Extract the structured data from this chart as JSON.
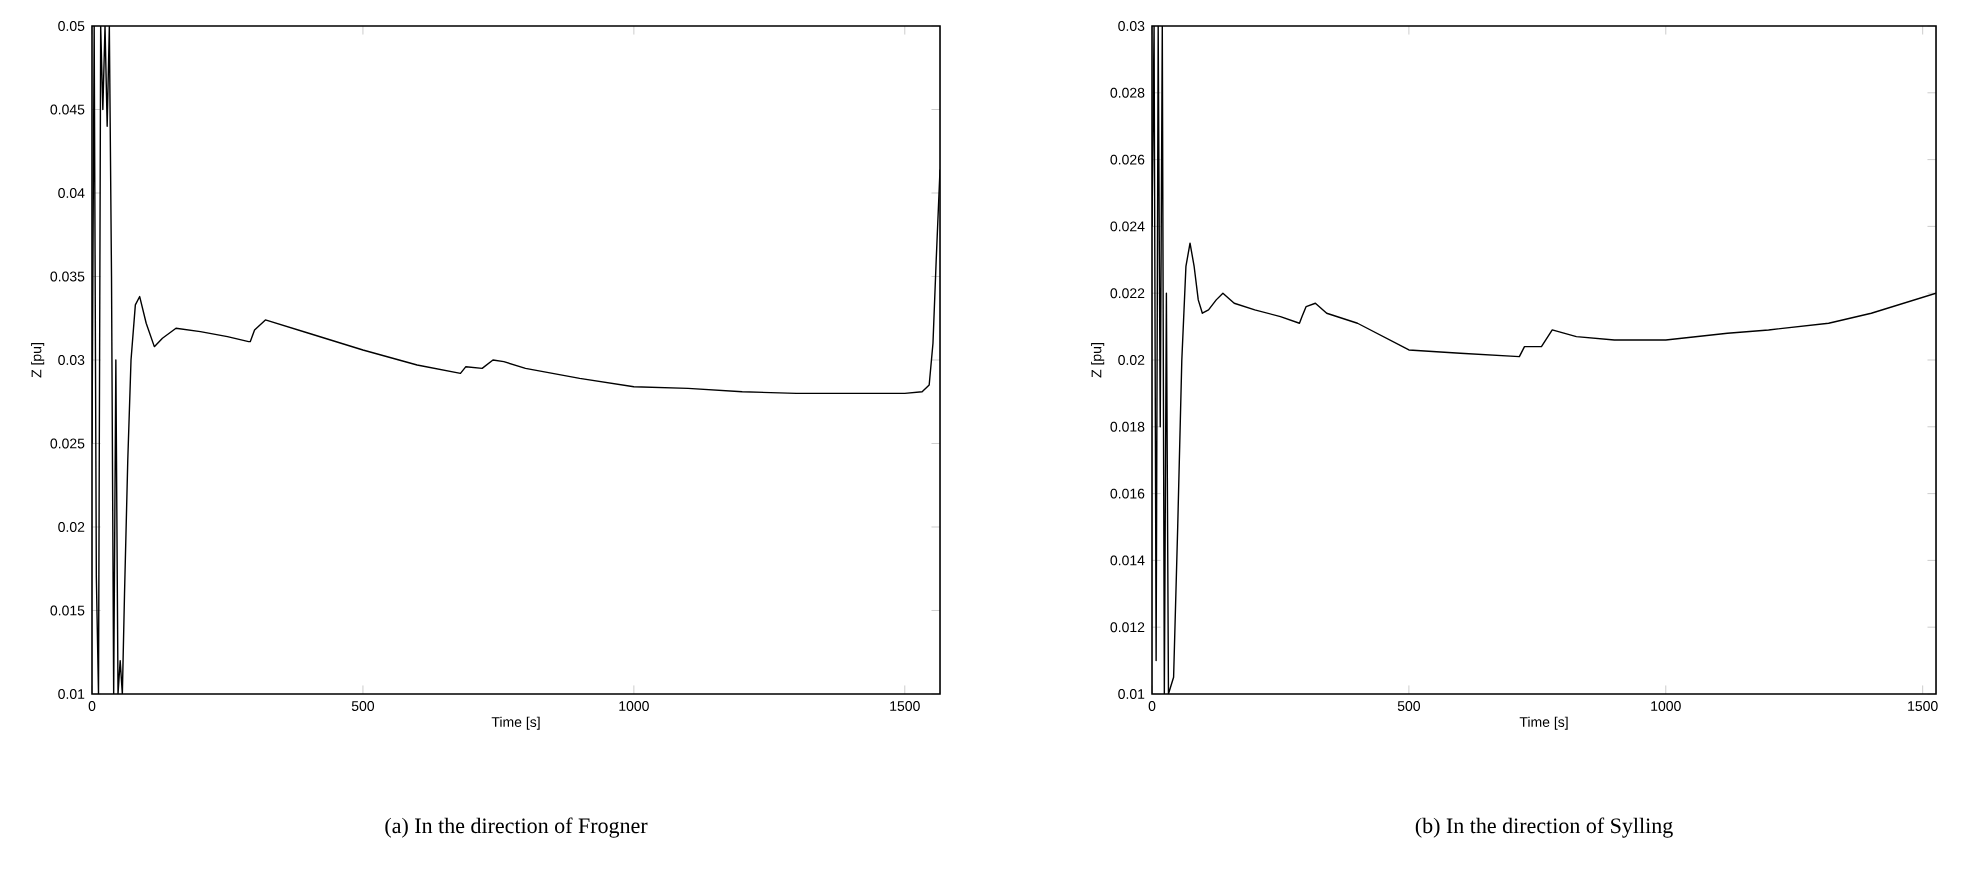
{
  "chart_data": [
    {
      "type": "line",
      "xlabel": "Time [s]",
      "ylabel": "Z [pu]",
      "color": "#000000",
      "annotations": [
        "(a) In the direction of Frogner"
      ],
      "xlim": [
        0,
        1565
      ],
      "ylim": [
        0.01,
        0.05
      ],
      "xticks": [
        0,
        500,
        1000,
        1500
      ],
      "yticks": [
        0.01,
        0.015,
        0.02,
        0.025,
        0.03,
        0.035,
        0.04,
        0.045,
        0.05
      ],
      "x": [
        0,
        4,
        8,
        12,
        16,
        20,
        24,
        28,
        32,
        36,
        40,
        44,
        48,
        52,
        56,
        60,
        66,
        72,
        80,
        88,
        100,
        115,
        130,
        155,
        200,
        250,
        289,
        292,
        300,
        320,
        350,
        400,
        500,
        600,
        680,
        690,
        720,
        740,
        760,
        800,
        900,
        1000,
        1100,
        1200,
        1300,
        1400,
        1500,
        1532,
        1545,
        1552,
        1558,
        1565
      ],
      "values": [
        0.025,
        0.05,
        0.017,
        0.01,
        0.05,
        0.045,
        0.05,
        0.044,
        0.05,
        0.035,
        0.01,
        0.03,
        0.01,
        0.012,
        0.01,
        0.016,
        0.024,
        0.03,
        0.0333,
        0.0338,
        0.0322,
        0.0308,
        0.0313,
        0.0319,
        0.0317,
        0.0314,
        0.0311,
        0.0311,
        0.0318,
        0.0324,
        0.0321,
        0.0316,
        0.0306,
        0.0297,
        0.0292,
        0.0296,
        0.0295,
        0.03,
        0.0299,
        0.0295,
        0.0289,
        0.0284,
        0.0283,
        0.0281,
        0.028,
        0.028,
        0.028,
        0.0281,
        0.0285,
        0.031,
        0.036,
        0.0414
      ]
    },
    {
      "type": "line",
      "xlabel": "Time [s]",
      "ylabel": "Z [pu]",
      "color": "#000000",
      "annotations": [
        "(b) In the direction of Sylling"
      ],
      "xlim": [
        0,
        1526
      ],
      "ylim": [
        0.01,
        0.03
      ],
      "xticks": [
        0,
        500,
        1000,
        1500
      ],
      "yticks": [
        0.01,
        0.012,
        0.014,
        0.016,
        0.018,
        0.02,
        0.022,
        0.024,
        0.026,
        0.028,
        0.03
      ],
      "x": [
        0,
        4,
        8,
        12,
        16,
        20,
        24,
        28,
        32,
        36,
        42,
        50,
        58,
        66,
        74,
        82,
        90,
        98,
        110,
        125,
        138,
        160,
        200,
        250,
        287,
        292,
        300,
        318,
        340,
        400,
        500,
        600,
        715,
        725,
        758,
        779,
        826,
        900,
        1000,
        1120,
        1200,
        1317,
        1400,
        1526
      ],
      "values": [
        0.024,
        0.03,
        0.011,
        0.03,
        0.018,
        0.03,
        0.01,
        0.022,
        0.01,
        0.0102,
        0.0105,
        0.015,
        0.02,
        0.0228,
        0.0235,
        0.0228,
        0.0218,
        0.0214,
        0.0215,
        0.0218,
        0.022,
        0.0217,
        0.0215,
        0.0213,
        0.0211,
        0.0213,
        0.0216,
        0.0217,
        0.0214,
        0.0211,
        0.0203,
        0.0202,
        0.0201,
        0.0204,
        0.0204,
        0.0209,
        0.0207,
        0.0206,
        0.0206,
        0.0208,
        0.0209,
        0.0211,
        0.0214,
        0.022
      ]
    }
  ]
}
